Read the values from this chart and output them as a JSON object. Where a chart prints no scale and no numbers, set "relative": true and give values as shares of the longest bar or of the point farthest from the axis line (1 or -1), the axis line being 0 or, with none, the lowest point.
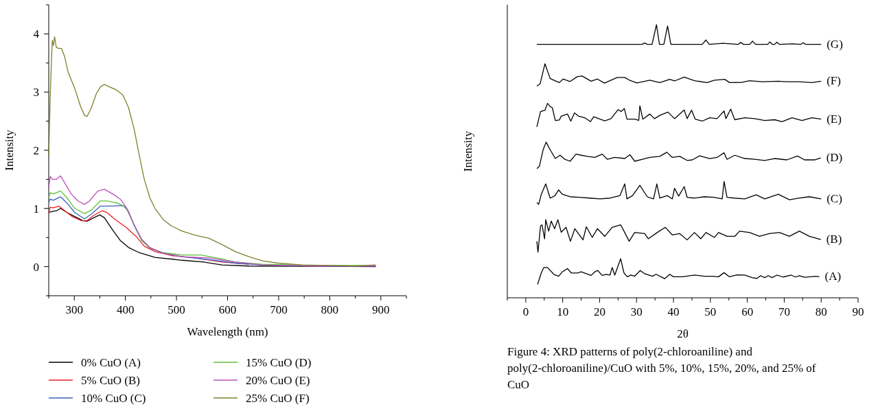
{
  "chart_data": [
    {
      "type": "line",
      "xlabel": "Wavelength (nm)",
      "ylabel": "Intensity",
      "xlim": [
        250,
        950
      ],
      "ylim": [
        -0.5,
        4.5
      ],
      "xticks": [
        {
          "value": 250,
          "label": null
        },
        300,
        {
          "value": 350,
          "label": null
        },
        400,
        {
          "value": 450,
          "label": null
        },
        500,
        {
          "value": 550,
          "label": null
        },
        600,
        {
          "value": 650,
          "label": null
        },
        700,
        {
          "value": 750,
          "label": null
        },
        800,
        {
          "value": 850,
          "label": null
        },
        900,
        {
          "value": 950,
          "label": null
        }
      ],
      "yticks": [
        {
          "value": -0.5,
          "label": null
        },
        0,
        {
          "value": 0.5,
          "label": null
        },
        1,
        {
          "value": 1.5,
          "label": null
        },
        2,
        {
          "value": 2.5,
          "label": null
        },
        3,
        {
          "value": 3.5,
          "label": null
        },
        4,
        {
          "value": 4.5,
          "label": null
        }
      ],
      "legend": "bottom",
      "series": [
        {
          "name": "0% CuO (A)",
          "color": "#000000",
          "x": [
            250,
            257,
            265,
            273,
            286,
            301,
            317,
            325,
            338,
            350,
            359,
            375,
            390,
            406,
            427,
            458,
            511,
            553,
            589,
            642,
            890
          ],
          "values": [
            0.93,
            0.95,
            0.96,
            1.0,
            0.93,
            0.86,
            0.79,
            0.78,
            0.84,
            0.89,
            0.84,
            0.63,
            0.45,
            0.33,
            0.24,
            0.16,
            0.11,
            0.08,
            0.03,
            0.01,
            0.0
          ]
        },
        {
          "name": "5% CuO (B)",
          "color": "#ee1c25",
          "x": [
            250,
            253,
            259,
            270,
            280,
            296,
            314,
            325,
            338,
            354,
            364,
            380,
            401,
            422,
            437,
            458,
            490,
            537,
            589,
            642
          ],
          "values": [
            0.93,
            1.02,
            1.01,
            1.04,
            0.97,
            0.86,
            0.79,
            0.79,
            0.88,
            0.96,
            0.93,
            0.81,
            0.68,
            0.51,
            0.35,
            0.26,
            0.19,
            0.15,
            0.08,
            0.04
          ]
        },
        {
          "name": "10% CuO (C)",
          "color": "#3c5fbf",
          "x": [
            250,
            253,
            259,
            273,
            286,
            301,
            320,
            333,
            351,
            369,
            396,
            406,
            417,
            432,
            448,
            474,
            511,
            563,
            615,
            668,
            772,
            890
          ],
          "values": [
            1.11,
            1.16,
            1.14,
            1.2,
            1.09,
            0.93,
            0.82,
            0.9,
            1.04,
            1.04,
            1.05,
            0.95,
            0.71,
            0.45,
            0.32,
            0.23,
            0.17,
            0.12,
            0.06,
            0.03,
            0.01,
            0.01
          ]
        },
        {
          "name": "15% CuO (D)",
          "color": "#5cbf3a",
          "x": [
            250,
            253,
            259,
            273,
            286,
            301,
            320,
            333,
            351,
            364,
            385,
            401,
            417,
            432,
            448,
            474,
            511,
            547,
            579,
            615,
            668,
            772,
            890
          ],
          "values": [
            1.18,
            1.27,
            1.25,
            1.3,
            1.18,
            1.0,
            0.91,
            0.97,
            1.13,
            1.13,
            1.09,
            1.02,
            0.72,
            0.45,
            0.32,
            0.24,
            0.2,
            0.2,
            0.15,
            0.08,
            0.04,
            0.02,
            0.02
          ]
        },
        {
          "name": "20% CuO (E)",
          "color": "#b94fb9",
          "x": [
            250,
            253,
            257,
            265,
            273,
            280,
            294,
            307,
            320,
            330,
            346,
            359,
            375,
            390,
            403,
            417,
            432,
            448,
            474,
            511,
            563,
            615,
            668,
            772,
            890
          ],
          "values": [
            1.36,
            1.55,
            1.5,
            1.5,
            1.56,
            1.46,
            1.25,
            1.13,
            1.07,
            1.13,
            1.3,
            1.33,
            1.25,
            1.16,
            1.0,
            0.72,
            0.47,
            0.33,
            0.23,
            0.17,
            0.15,
            0.08,
            0.03,
            0.01,
            0.01
          ]
        },
        {
          "name": "25% CuO (F)",
          "color": "#7f7f2c",
          "x": [
            250,
            252.6,
            255,
            257,
            259,
            261.5,
            264.7,
            270,
            275,
            281,
            288,
            301,
            312,
            320,
            325,
            333,
            343,
            351,
            359,
            369,
            382,
            395,
            406,
            417,
            427,
            437,
            448,
            458,
            474,
            490,
            511,
            537,
            563,
            589,
            615,
            642,
            668,
            699,
            746,
            799,
            851,
            890
          ],
          "values": [
            1.89,
            2.83,
            3.48,
            3.89,
            3.8,
            3.95,
            3.77,
            3.75,
            3.75,
            3.61,
            3.34,
            3.06,
            2.76,
            2.6,
            2.58,
            2.72,
            2.97,
            3.09,
            3.13,
            3.09,
            3.04,
            2.95,
            2.74,
            2.37,
            1.92,
            1.5,
            1.18,
            1.0,
            0.81,
            0.7,
            0.61,
            0.54,
            0.49,
            0.38,
            0.26,
            0.17,
            0.1,
            0.06,
            0.03,
            0.02,
            0.01,
            0.03
          ]
        }
      ]
    },
    {
      "type": "line",
      "relative": true,
      "xlabel": "2θ",
      "ylabel": "Intensity",
      "xlim": [
        -5,
        90
      ],
      "xticks": [
        {
          "value": -5,
          "label": null
        },
        0,
        {
          "value": 5,
          "label": null
        },
        10,
        {
          "value": 15,
          "label": null
        },
        20,
        {
          "value": 25,
          "label": null
        },
        30,
        {
          "value": 35,
          "label": null
        },
        40,
        {
          "value": 45,
          "label": null
        },
        50,
        {
          "value": 55,
          "label": null
        },
        60,
        {
          "value": 65,
          "label": null
        },
        70,
        {
          "value": 75,
          "label": null
        },
        80,
        {
          "value": 85,
          "label": null
        },
        90
      ],
      "annotations": [
        "Figure 4: XRD patterns of poly(2-chloroaniline) and poly(2-chloroaniline)/CuO with 5%, 10%, 15%, 20%, and 25% of CuO"
      ],
      "series": [
        {
          "name": "(A)",
          "color": "#000000",
          "x": [
            3.2,
            4.2,
            4.9,
            5.9,
            7.6,
            8.9,
            9.9,
            11.3,
            12.3,
            14,
            15,
            17.7,
            18.7,
            19.5,
            20.7,
            21.8,
            22.8,
            23.4,
            24.1,
            25.7,
            26.6,
            27.5,
            28.5,
            29.5,
            31,
            32.2,
            34.3,
            35.3,
            36.6,
            37.6,
            39,
            40,
            42.4,
            45.7,
            48.4,
            50.5,
            52.2,
            53.7,
            55.1,
            57.2,
            59.3,
            61.3,
            62.6,
            63.6,
            64.7,
            65.7,
            66.7,
            68,
            69.7,
            71.9,
            73,
            74.1,
            75.5,
            78.5,
            79.5
          ],
          "values": [
            0.049,
            0.091,
            0.111,
            0.111,
            0.086,
            0.079,
            0.095,
            0.107,
            0.091,
            0.091,
            0.095,
            0.082,
            0.095,
            0.1,
            0.082,
            0.086,
            0.083,
            0.111,
            0.083,
            0.143,
            0.091,
            0.077,
            0.083,
            0.079,
            0.1,
            0.088,
            0.079,
            0.086,
            0.077,
            0.07,
            0.086,
            0.077,
            0.077,
            0.083,
            0.079,
            0.079,
            0.077,
            0.092,
            0.077,
            0.084,
            0.083,
            0.074,
            0.071,
            0.081,
            0.074,
            0.081,
            0.074,
            0.083,
            0.076,
            0.083,
            0.076,
            0.081,
            0.075,
            0.079,
            0.077
          ]
        },
        {
          "name": "(B)",
          "color": "#000000",
          "x": [
            3,
            3.3,
            4,
            4.4,
            5.1,
            5.4,
            6.2,
            6.9,
            7.8,
            8.7,
            9.6,
            10.9,
            12.1,
            13.3,
            15.5,
            16.4,
            18,
            19.4,
            21.4,
            23.4,
            25.7,
            26.8,
            28,
            29.5,
            32.2,
            33.2,
            35.6,
            37.8,
            39.7,
            41.7,
            43.7,
            45.7,
            47.4,
            48.8,
            51.1,
            52.2,
            54.5,
            56.6,
            57.9,
            60.6,
            63.3,
            66,
            68.7,
            71.4,
            74.1,
            76.8,
            79.9
          ],
          "values": [
            0.207,
            0.167,
            0.263,
            0.267,
            0.216,
            0.286,
            0.244,
            0.281,
            0.253,
            0.286,
            0.24,
            0.258,
            0.207,
            0.253,
            0.212,
            0.26,
            0.221,
            0.253,
            0.225,
            0.258,
            0.267,
            0.239,
            0.207,
            0.239,
            0.235,
            0.216,
            0.239,
            0.258,
            0.23,
            0.235,
            0.212,
            0.239,
            0.216,
            0.239,
            0.221,
            0.239,
            0.225,
            0.225,
            0.244,
            0.239,
            0.225,
            0.235,
            0.239,
            0.225,
            0.244,
            0.225,
            0.213
          ]
        },
        {
          "name": "(C)",
          "color": "#000000",
          "x": [
            3,
            3.5,
            4.2,
            5.4,
            6.6,
            7.9,
            8.9,
            9.9,
            12,
            14.7,
            17.4,
            20.1,
            22.8,
            25.5,
            26.8,
            27.4,
            28.9,
            30.9,
            32.9,
            34.6,
            35.5,
            36.3,
            38.3,
            39.7,
            40.3,
            41.4,
            42.9,
            43.7,
            45.7,
            48.4,
            51.1,
            53.2,
            53.7,
            54.5,
            56.6,
            59.3,
            62.4,
            64.7,
            68.4,
            71.4,
            74.1,
            76.8,
            80
          ],
          "values": [
            0.349,
            0.342,
            0.379,
            0.417,
            0.365,
            0.374,
            0.395,
            0.379,
            0.37,
            0.368,
            0.365,
            0.362,
            0.365,
            0.374,
            0.417,
            0.362,
            0.374,
            0.412,
            0.37,
            0.362,
            0.417,
            0.365,
            0.374,
            0.362,
            0.401,
            0.372,
            0.407,
            0.368,
            0.365,
            0.37,
            0.368,
            0.362,
            0.426,
            0.368,
            0.365,
            0.362,
            0.377,
            0.362,
            0.379,
            0.359,
            0.365,
            0.37,
            0.362
          ]
        },
        {
          "name": "(D)",
          "color": "#000000",
          "x": [
            3,
            3.7,
            4.7,
            5.5,
            6.6,
            8,
            9.3,
            10.6,
            12,
            13.6,
            15,
            16.7,
            18.7,
            20.7,
            22.1,
            24.1,
            26.8,
            28.2,
            29.5,
            31.6,
            33.6,
            36.3,
            38.2,
            39.7,
            41.7,
            43.7,
            45.1,
            47.1,
            49.8,
            51.8,
            53.7,
            54.5,
            56.6,
            59.3,
            62,
            64.7,
            67.4,
            70.7,
            73.6,
            75.5,
            78.2,
            79.9
          ],
          "values": [
            0.473,
            0.482,
            0.542,
            0.57,
            0.542,
            0.51,
            0.522,
            0.507,
            0.5,
            0.526,
            0.522,
            0.518,
            0.514,
            0.526,
            0.507,
            0.514,
            0.51,
            0.524,
            0.5,
            0.507,
            0.514,
            0.518,
            0.533,
            0.514,
            0.518,
            0.503,
            0.505,
            0.52,
            0.51,
            0.514,
            0.531,
            0.507,
            0.522,
            0.51,
            0.507,
            0.503,
            0.51,
            0.505,
            0.519,
            0.505,
            0.505,
            0.512
          ]
        },
        {
          "name": "(E)",
          "color": "#000000",
          "x": [
            3,
            4,
            5.2,
            5.9,
            6.6,
            7.2,
            8,
            9.1,
            9.6,
            11.3,
            12.2,
            13.2,
            14.3,
            16,
            17.5,
            18.4,
            20.1,
            21.4,
            23.1,
            25,
            25.8,
            26.7,
            27.4,
            29.5,
            30.6,
            30.9,
            31.7,
            33.6,
            34.9,
            36.3,
            38.5,
            40.3,
            42.9,
            43.7,
            44.9,
            45.9,
            47.8,
            49.8,
            51.8,
            53.7,
            54.2,
            55.5,
            56.6,
            59.3,
            62,
            64.7,
            67.4,
            69.4,
            72.1,
            74.8,
            77.5,
            80
          ],
          "values": [
            0.626,
            0.682,
            0.687,
            0.712,
            0.7,
            0.696,
            0.649,
            0.651,
            0.665,
            0.673,
            0.647,
            0.677,
            0.665,
            0.659,
            0.645,
            0.663,
            0.654,
            0.648,
            0.656,
            0.689,
            0.682,
            0.693,
            0.654,
            0.654,
            0.65,
            0.703,
            0.654,
            0.673,
            0.656,
            0.668,
            0.68,
            0.656,
            0.688,
            0.656,
            0.687,
            0.654,
            0.647,
            0.659,
            0.656,
            0.684,
            0.656,
            0.691,
            0.652,
            0.659,
            0.656,
            0.649,
            0.652,
            0.645,
            0.659,
            0.649,
            0.659,
            0.654
          ]
        },
        {
          "name": "(F)",
          "color": "#000000",
          "x": [
            3,
            3.9,
            5.2,
            6.6,
            7.9,
            9.1,
            10.1,
            12,
            14,
            15.3,
            17.7,
            19.4,
            21.3,
            24.8,
            26.8,
            28.2,
            30.1,
            33.6,
            36.3,
            39,
            40.3,
            42.9,
            45.7,
            49.1,
            51.1,
            53.9,
            55.2,
            58.6,
            60.6,
            64,
            68.4,
            70.7,
            74.1,
            77.5,
            80
          ],
          "values": [
            0.775,
            0.784,
            0.857,
            0.803,
            0.795,
            0.788,
            0.801,
            0.792,
            0.81,
            0.812,
            0.793,
            0.801,
            0.786,
            0.807,
            0.807,
            0.796,
            0.787,
            0.797,
            0.788,
            0.8,
            0.794,
            0.808,
            0.795,
            0.788,
            0.797,
            0.8,
            0.788,
            0.789,
            0.795,
            0.791,
            0.793,
            0.791,
            0.791,
            0.788,
            0.793
          ]
        },
        {
          "name": "(G)",
          "color": "#000000",
          "x": [
            3,
            31.5,
            32.2,
            32.9,
            34.2,
            35.4,
            36.2,
            37.4,
            38.4,
            39.3,
            47.8,
            48.8,
            49.7,
            53.4,
            57.5,
            58.2,
            59,
            60.7,
            61.4,
            62.2,
            65.5,
            66.1,
            66.8,
            67.4,
            68,
            68.7,
            72.4,
            74.5,
            75.1,
            75.8,
            80
          ],
          "values": [
            0.928,
            0.928,
            0.933,
            0.928,
            0.928,
            1.0,
            0.928,
            0.928,
            0.995,
            0.928,
            0.928,
            0.944,
            0.928,
            0.932,
            0.928,
            0.935,
            0.928,
            0.928,
            0.94,
            0.928,
            0.928,
            0.937,
            0.928,
            0.928,
            0.936,
            0.928,
            0.93,
            0.928,
            0.934,
            0.928,
            0.928
          ]
        }
      ]
    }
  ]
}
